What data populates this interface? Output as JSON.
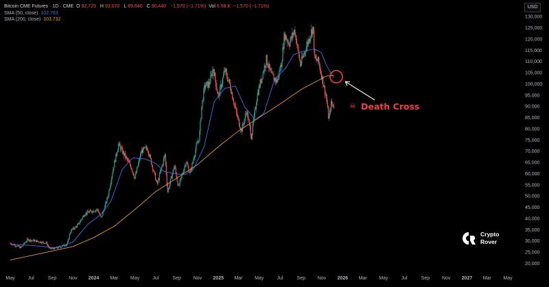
{
  "header": {
    "symbol": "Bitcoin CME Futures · 1D · CME",
    "ohlc": [
      {
        "k": "O",
        "v": "92,725"
      },
      {
        "k": "H",
        "v": "93,070"
      },
      {
        "k": "L",
        "v": "89,640"
      },
      {
        "k": "C",
        "v": "90,440"
      }
    ],
    "change": "−1,570 (−1.71%)",
    "vol_label": "Vol",
    "vol_value": "6.58 K",
    "vol_change": "−1,570 (−1.71%)",
    "sma50_label": "SMA (50, close)",
    "sma50_value": "102,763",
    "sma200_label": "SMA (200, close)",
    "sma200_value": "103,732"
  },
  "currency": "USD",
  "annotation": {
    "text": "Death Cross",
    "icon": "skull-icon"
  },
  "logo": {
    "line1": "Crypto",
    "line2": "Rover"
  },
  "colors": {
    "bull": "#26a69a",
    "bear": "#ef5350",
    "sma50": "#4a6fe3",
    "sma200": "#e39a4c",
    "annotation": "#ef4046",
    "axis_text": "#b2b5be"
  },
  "chart_data": {
    "type": "candlestick",
    "title": "Bitcoin CME Futures · 1D · CME",
    "y_ticks": [
      20000,
      25000,
      30000,
      35000,
      40000,
      45000,
      50000,
      55000,
      60000,
      65000,
      70000,
      75000,
      80000,
      85000,
      90000,
      95000,
      100000,
      105000,
      110000,
      115000,
      120000,
      125000,
      130000
    ],
    "y_tick_labels": [
      "20,000",
      "25,000",
      "30,000",
      "35,000",
      "40,000",
      "45,000",
      "50,000",
      "55,000",
      "60,000",
      "65,000",
      "70,000",
      "75,000",
      "80,000",
      "85,000",
      "90,000",
      "95,000",
      "100,000",
      "105,000",
      "110,000",
      "115,000",
      "120,000",
      "125,000",
      "130,000"
    ],
    "ylim": [
      18000,
      133000
    ],
    "x_tick_labels": [
      "May",
      "Jul",
      "Sep",
      "Nov",
      "2024",
      "Mar",
      "May",
      "Jul",
      "Sep",
      "Nov",
      "2025",
      "Mar",
      "May",
      "Jul",
      "Sep",
      "Nov",
      "2026",
      "Mar",
      "May",
      "Jul",
      "Sep",
      "Nov",
      "2027",
      "Mar",
      "May"
    ],
    "x_tick_dates": [
      "2023-05",
      "2023-07",
      "2023-09",
      "2023-11",
      "2024-01",
      "2024-03",
      "2024-05",
      "2024-07",
      "2024-09",
      "2024-11",
      "2025-01",
      "2025-03",
      "2025-05",
      "2025-07",
      "2025-09",
      "2025-11",
      "2026-01",
      "2026-03",
      "2026-05",
      "2026-07",
      "2026-09",
      "2026-11",
      "2027-01",
      "2027-03",
      "2027-05"
    ],
    "bold_x_ticks": [
      "2024",
      "2025",
      "2026",
      "2027"
    ],
    "price_series": [
      {
        "date": "2023-05-01",
        "close": 29000
      },
      {
        "date": "2023-06-01",
        "close": 27000
      },
      {
        "date": "2023-06-20",
        "close": 30500
      },
      {
        "date": "2023-07-15",
        "close": 30000
      },
      {
        "date": "2023-08-15",
        "close": 29000
      },
      {
        "date": "2023-08-25",
        "close": 26500
      },
      {
        "date": "2023-09-15",
        "close": 26800
      },
      {
        "date": "2023-10-15",
        "close": 28500
      },
      {
        "date": "2023-10-25",
        "close": 34500
      },
      {
        "date": "2023-11-15",
        "close": 37000
      },
      {
        "date": "2023-12-05",
        "close": 42000
      },
      {
        "date": "2023-12-20",
        "close": 43000
      },
      {
        "date": "2024-01-12",
        "close": 44000
      },
      {
        "date": "2024-01-23",
        "close": 40000
      },
      {
        "date": "2024-02-12",
        "close": 50000
      },
      {
        "date": "2024-02-28",
        "close": 63000
      },
      {
        "date": "2024-03-14",
        "close": 73000
      },
      {
        "date": "2024-04-01",
        "close": 68000
      },
      {
        "date": "2024-04-20",
        "close": 63000
      },
      {
        "date": "2024-05-01",
        "close": 58000
      },
      {
        "date": "2024-05-20",
        "close": 70000
      },
      {
        "date": "2024-06-07",
        "close": 71500
      },
      {
        "date": "2024-06-25",
        "close": 61000
      },
      {
        "date": "2024-07-05",
        "close": 55000
      },
      {
        "date": "2024-07-28",
        "close": 68500
      },
      {
        "date": "2024-08-05",
        "close": 52000
      },
      {
        "date": "2024-08-25",
        "close": 63500
      },
      {
        "date": "2024-09-06",
        "close": 54000
      },
      {
        "date": "2024-09-28",
        "close": 65500
      },
      {
        "date": "2024-10-10",
        "close": 60000
      },
      {
        "date": "2024-10-28",
        "close": 72000
      },
      {
        "date": "2024-11-06",
        "close": 76000
      },
      {
        "date": "2024-11-13",
        "close": 90000
      },
      {
        "date": "2024-11-22",
        "close": 99000
      },
      {
        "date": "2024-12-05",
        "close": 100000
      },
      {
        "date": "2024-12-17",
        "close": 107000
      },
      {
        "date": "2025-01-01",
        "close": 94000
      },
      {
        "date": "2025-01-20",
        "close": 106000
      },
      {
        "date": "2025-02-03",
        "close": 100000
      },
      {
        "date": "2025-02-26",
        "close": 85000
      },
      {
        "date": "2025-03-10",
        "close": 79000
      },
      {
        "date": "2025-03-25",
        "close": 88000
      },
      {
        "date": "2025-04-08",
        "close": 76500
      },
      {
        "date": "2025-04-25",
        "close": 95000
      },
      {
        "date": "2025-05-10",
        "close": 104000
      },
      {
        "date": "2025-05-22",
        "close": 111000
      },
      {
        "date": "2025-06-05",
        "close": 104000
      },
      {
        "date": "2025-06-22",
        "close": 101000
      },
      {
        "date": "2025-07-05",
        "close": 109000
      },
      {
        "date": "2025-07-14",
        "close": 122000
      },
      {
        "date": "2025-07-28",
        "close": 118000
      },
      {
        "date": "2025-08-13",
        "close": 124000
      },
      {
        "date": "2025-08-30",
        "close": 108500
      },
      {
        "date": "2025-09-15",
        "close": 116000
      },
      {
        "date": "2025-10-06",
        "close": 125500
      },
      {
        "date": "2025-10-11",
        "close": 111000
      },
      {
        "date": "2025-10-22",
        "close": 110000
      },
      {
        "date": "2025-11-04",
        "close": 101000
      },
      {
        "date": "2025-11-14",
        "close": 94000
      },
      {
        "date": "2025-11-21",
        "close": 84000
      },
      {
        "date": "2025-11-28",
        "close": 91000
      },
      {
        "date": "2025-12-06",
        "close": 90440
      }
    ],
    "series": [
      {
        "name": "SMA (50, close)",
        "points": [
          {
            "date": "2023-05-01",
            "value": 28500
          },
          {
            "date": "2023-07-01",
            "value": 28000
          },
          {
            "date": "2023-09-10",
            "value": 27000
          },
          {
            "date": "2023-11-01",
            "value": 29500
          },
          {
            "date": "2023-12-15",
            "value": 37500
          },
          {
            "date": "2024-01-20",
            "value": 41500
          },
          {
            "date": "2024-02-20",
            "value": 47500
          },
          {
            "date": "2024-03-25",
            "value": 62000
          },
          {
            "date": "2024-04-25",
            "value": 67000
          },
          {
            "date": "2024-06-01",
            "value": 66500
          },
          {
            "date": "2024-07-01",
            "value": 64500
          },
          {
            "date": "2024-07-25",
            "value": 61000
          },
          {
            "date": "2024-08-25",
            "value": 60000
          },
          {
            "date": "2024-09-25",
            "value": 59500
          },
          {
            "date": "2024-10-20",
            "value": 62000
          },
          {
            "date": "2024-11-20",
            "value": 72000
          },
          {
            "date": "2024-12-20",
            "value": 92000
          },
          {
            "date": "2025-01-20",
            "value": 98000
          },
          {
            "date": "2025-02-20",
            "value": 99000
          },
          {
            "date": "2025-03-20",
            "value": 89500
          },
          {
            "date": "2025-04-20",
            "value": 84000
          },
          {
            "date": "2025-05-15",
            "value": 87000
          },
          {
            "date": "2025-06-15",
            "value": 102000
          },
          {
            "date": "2025-07-15",
            "value": 106500
          },
          {
            "date": "2025-08-10",
            "value": 113000
          },
          {
            "date": "2025-09-05",
            "value": 114500
          },
          {
            "date": "2025-10-10",
            "value": 115500
          },
          {
            "date": "2025-10-30",
            "value": 114000
          },
          {
            "date": "2025-11-15",
            "value": 108000
          },
          {
            "date": "2025-12-06",
            "value": 102763
          }
        ]
      },
      {
        "name": "SMA (200, close)",
        "points": [
          {
            "date": "2023-05-01",
            "value": 21500
          },
          {
            "date": "2023-08-01",
            "value": 24500
          },
          {
            "date": "2023-11-01",
            "value": 27500
          },
          {
            "date": "2024-01-01",
            "value": 31500
          },
          {
            "date": "2024-03-01",
            "value": 36500
          },
          {
            "date": "2024-05-01",
            "value": 44000
          },
          {
            "date": "2024-07-01",
            "value": 52000
          },
          {
            "date": "2024-09-01",
            "value": 58000
          },
          {
            "date": "2024-11-01",
            "value": 64000
          },
          {
            "date": "2025-01-01",
            "value": 72000
          },
          {
            "date": "2025-03-01",
            "value": 79000
          },
          {
            "date": "2025-05-01",
            "value": 85000
          },
          {
            "date": "2025-07-01",
            "value": 91000
          },
          {
            "date": "2025-09-01",
            "value": 97500
          },
          {
            "date": "2025-10-15",
            "value": 101000
          },
          {
            "date": "2025-11-15",
            "value": 103500
          },
          {
            "date": "2025-12-06",
            "value": 103732
          }
        ]
      }
    ],
    "legend_position": "top-left",
    "grid": false
  }
}
